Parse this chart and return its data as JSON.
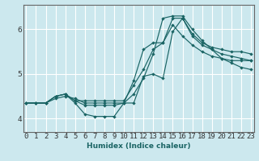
{
  "xlabel": "Humidex (Indice chaleur)",
  "bg_color": "#cce8ee",
  "grid_color": "#ffffff",
  "line_color": "#1a6464",
  "x_ticks": [
    0,
    1,
    2,
    3,
    4,
    5,
    6,
    7,
    8,
    9,
    10,
    11,
    12,
    13,
    14,
    15,
    16,
    17,
    18,
    19,
    20,
    21,
    22,
    23
  ],
  "ylim": [
    3.7,
    6.55
  ],
  "xlim": [
    -0.3,
    23.3
  ],
  "series": [
    [
      4.35,
      4.35,
      4.35,
      4.5,
      4.55,
      4.4,
      4.3,
      4.3,
      4.3,
      4.3,
      4.35,
      4.35,
      4.95,
      5.0,
      4.9,
      5.95,
      6.25,
      5.85,
      5.65,
      5.55,
      5.45,
      5.4,
      5.35,
      5.3
    ],
    [
      4.35,
      4.35,
      4.35,
      4.5,
      4.55,
      4.35,
      4.1,
      4.05,
      4.05,
      4.05,
      4.35,
      4.55,
      4.9,
      5.45,
      6.25,
      6.3,
      6.3,
      6.0,
      5.75,
      5.55,
      5.35,
      5.25,
      5.15,
      5.1
    ],
    [
      4.35,
      4.35,
      4.35,
      4.45,
      4.5,
      4.45,
      4.35,
      4.35,
      4.35,
      4.35,
      4.35,
      4.85,
      5.55,
      5.7,
      5.7,
      6.25,
      6.25,
      5.9,
      5.7,
      5.6,
      5.55,
      5.5,
      5.5,
      5.45
    ],
    [
      4.35,
      4.35,
      4.35,
      4.5,
      4.55,
      4.4,
      4.4,
      4.4,
      4.4,
      4.4,
      4.4,
      4.75,
      5.1,
      5.55,
      5.7,
      6.1,
      5.85,
      5.65,
      5.5,
      5.4,
      5.35,
      5.3,
      5.3,
      5.3
    ]
  ]
}
